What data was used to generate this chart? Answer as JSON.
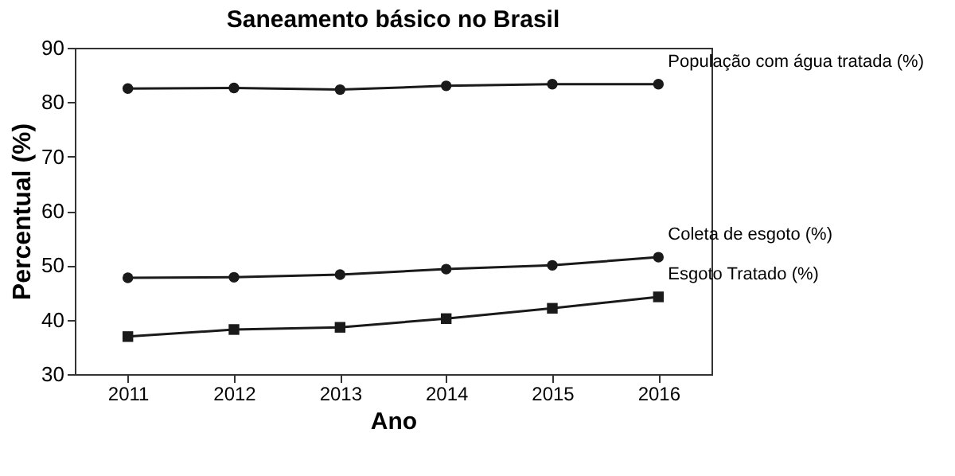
{
  "chart_data": {
    "type": "line",
    "title": "Saneamento básico no Brasil",
    "xlabel": "Ano",
    "ylabel": "Percentual (%)",
    "categories": [
      "2011",
      "2012",
      "2013",
      "2014",
      "2015",
      "2016"
    ],
    "series": [
      {
        "name": "População com água tratada (%)",
        "color": "#1a1a1a",
        "marker": "circle",
        "values": [
          82.5,
          82.6,
          82.3,
          83.0,
          83.3,
          83.3
        ]
      },
      {
        "name": "Coleta de esgoto (%)",
        "color": "#1a1a1a",
        "marker": "circle",
        "values": [
          47.7,
          47.8,
          48.3,
          49.3,
          50.0,
          51.5
        ]
      },
      {
        "name": "Esgoto Tratado (%)",
        "color": "#1a1a1a",
        "marker": "square",
        "values": [
          36.9,
          38.2,
          38.6,
          40.2,
          42.1,
          44.2
        ]
      }
    ],
    "ylim": [
      30,
      90
    ],
    "yticks": [
      30,
      40,
      50,
      60,
      70,
      80,
      90
    ],
    "line_style": "solid"
  }
}
